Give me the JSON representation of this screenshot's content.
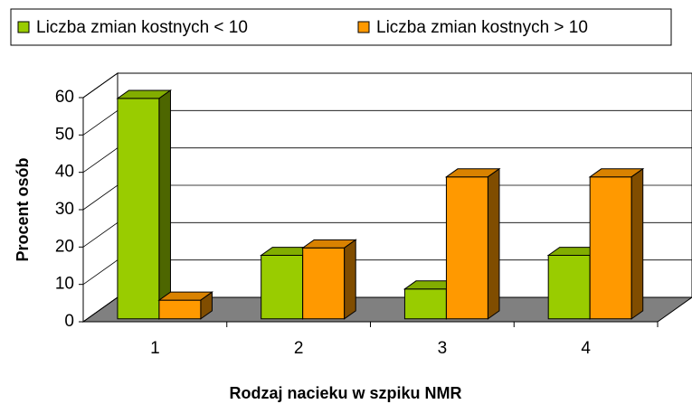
{
  "chart_data": {
    "type": "bar3d",
    "xlabel": "Rodzaj nacieku w szpiku NMR",
    "ylabel": "Procent osób",
    "categories": [
      "1",
      "2",
      "3",
      "4"
    ],
    "series": [
      {
        "name": "Liczba zmian kostnych < 10",
        "color": "#99cc00",
        "values": [
          59,
          17,
          8,
          17
        ]
      },
      {
        "name": "Liczba zmian kostnych > 10",
        "color": "#ff9900",
        "values": [
          5,
          19,
          38,
          38
        ]
      }
    ],
    "ylim": [
      0,
      60
    ],
    "yticks": [
      0,
      10,
      20,
      30,
      40,
      50,
      60
    ],
    "grid": true,
    "legend": "top"
  }
}
